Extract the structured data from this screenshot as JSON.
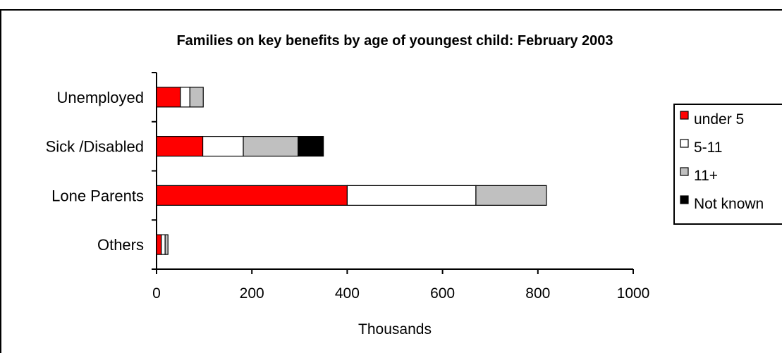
{
  "chart_data": {
    "type": "bar",
    "orientation": "horizontal",
    "stacked": true,
    "title": "Families on key benefits by age of youngest child:  February 2003",
    "xlabel": "Thousands",
    "ylabel": "",
    "xlim": [
      0,
      1000
    ],
    "x_ticks": [
      "0",
      "200",
      "400",
      "600",
      "800",
      "1000"
    ],
    "categories": [
      "Unemployed",
      "Sick /Disabled",
      "Lone Parents",
      "Others"
    ],
    "series": [
      {
        "name": "under 5",
        "values": [
          50,
          97,
          400,
          10
        ],
        "color": "#ff0000"
      },
      {
        "name": "5-11",
        "values": [
          20,
          85,
          270,
          8
        ],
        "color": "#ffffff"
      },
      {
        "name": "11+",
        "values": [
          28,
          115,
          148,
          6
        ],
        "color": "#c0c0c0"
      },
      {
        "name": "Not known",
        "values": [
          0,
          53,
          0,
          0
        ],
        "color": "#000000"
      }
    ],
    "grid": false,
    "legend_position": "right"
  }
}
